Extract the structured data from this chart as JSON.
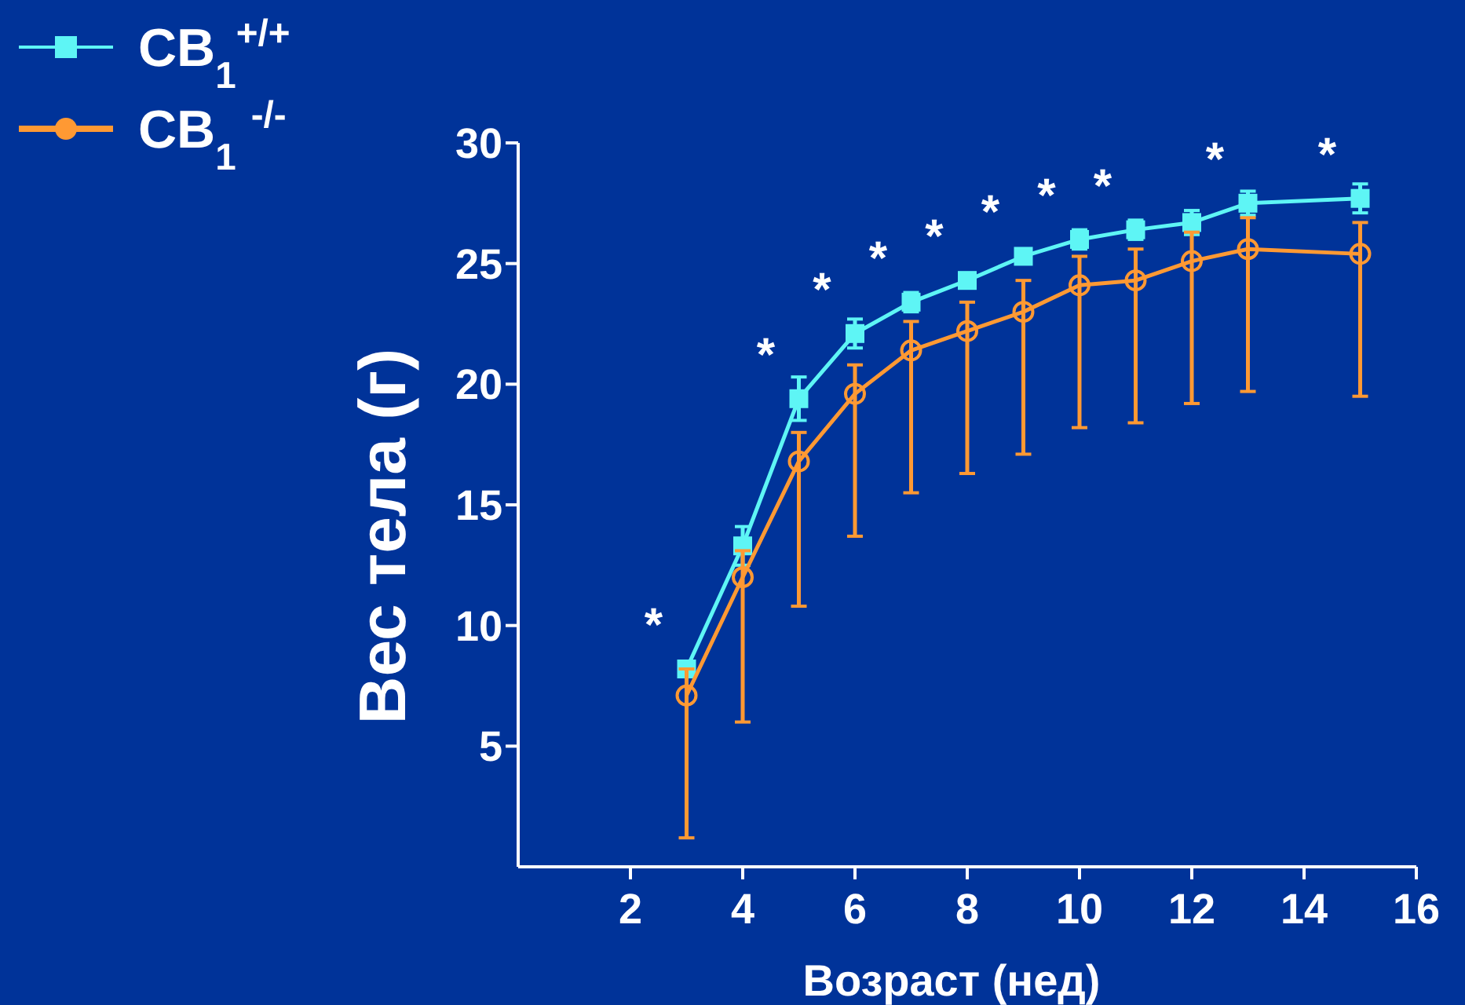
{
  "chart_data": {
    "type": "line",
    "xlabel": "Возраст (нед)",
    "ylabel": "Вес тела (г)",
    "x": [
      3,
      4,
      5,
      6,
      7,
      8,
      9,
      10,
      11,
      12,
      13,
      15
    ],
    "series": [
      {
        "name": "CB$_{1}$$^{+/+}$",
        "color": "#5ef5f5",
        "marker": "square",
        "values": [
          8.2,
          13.3,
          19.4,
          22.1,
          23.4,
          24.3,
          25.3,
          26.0,
          26.4,
          26.7,
          27.5,
          27.7
        ],
        "errors": [
          0.3,
          0.8,
          0.9,
          0.6,
          0.4,
          0.3,
          0.3,
          0.4,
          0.4,
          0.5,
          0.5,
          0.6
        ]
      },
      {
        "name": "CB$_{1}$ $^{-/-}$",
        "color": "#ff9933",
        "marker": "circle",
        "values": [
          7.1,
          12.0,
          16.8,
          19.6,
          21.4,
          22.2,
          23.0,
          24.1,
          24.3,
          25.1,
          25.6,
          25.4
        ],
        "errors": [
          [
            1.2,
            8.2
          ],
          [
            6.0,
            13.1
          ],
          [
            10.8,
            18.0
          ],
          [
            13.7,
            20.8
          ],
          [
            15.5,
            22.6
          ],
          [
            16.3,
            23.4
          ],
          [
            17.1,
            24.3
          ],
          [
            18.2,
            25.3
          ],
          [
            18.4,
            25.6
          ],
          [
            19.2,
            26.3
          ],
          [
            19.7,
            26.9
          ],
          [
            19.5,
            26.7
          ]
        ]
      }
    ],
    "xlim": [
      0,
      16
    ],
    "xticks": [
      2,
      4,
      6,
      8,
      10,
      12,
      14,
      16
    ],
    "ylim": [
      0,
      30
    ],
    "yticks": [
      5,
      10,
      15,
      20,
      25,
      30
    ],
    "annotations": [
      {
        "text": "*",
        "x": 3,
        "y": 8.2
      },
      {
        "text": "*",
        "x": 5,
        "y": 19.4
      },
      {
        "text": "*",
        "x": 6,
        "y": 22.1
      },
      {
        "text": "*",
        "x": 7,
        "y": 23.4
      },
      {
        "text": "*",
        "x": 8,
        "y": 24.3
      },
      {
        "text": "*",
        "x": 9,
        "y": 25.3
      },
      {
        "text": "*",
        "x": 10,
        "y": 26.0
      },
      {
        "text": "*",
        "x": 11,
        "y": 26.4
      },
      {
        "text": "*",
        "x": 13,
        "y": 27.5
      },
      {
        "text": "*",
        "x": 15,
        "y": 27.7
      }
    ],
    "legend": "top left",
    "grid": false,
    "line_style": "solid"
  }
}
